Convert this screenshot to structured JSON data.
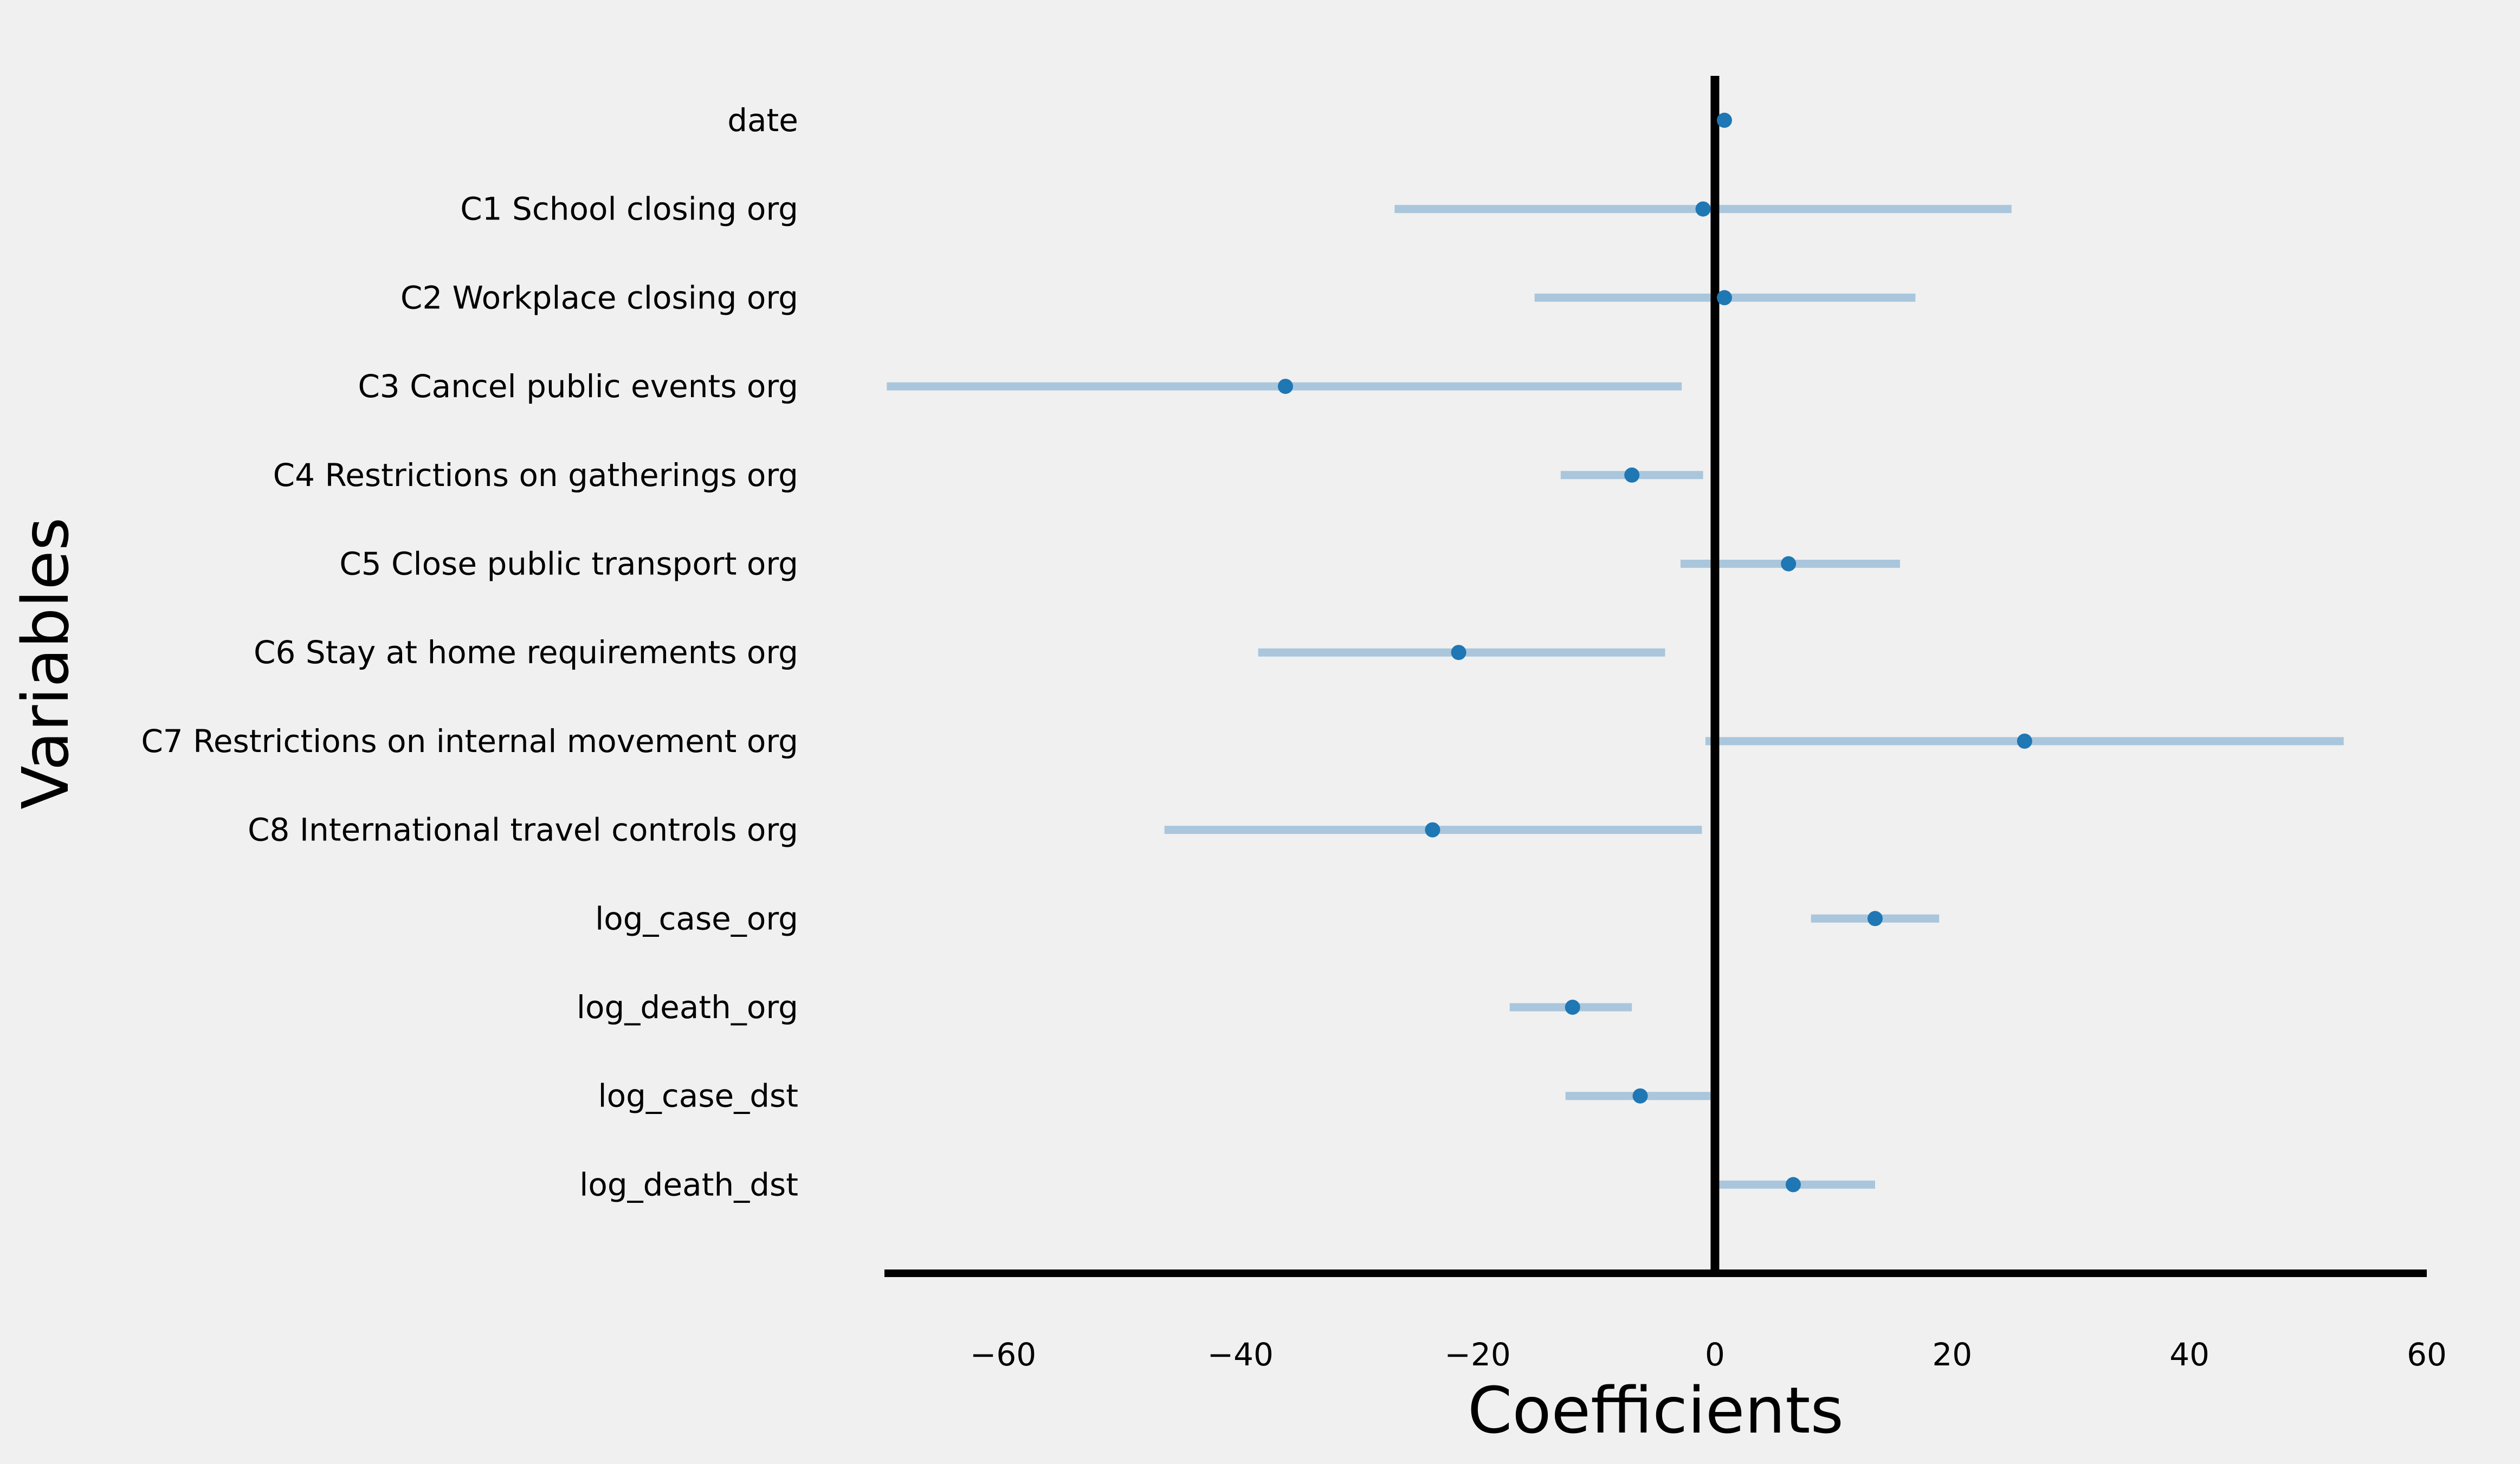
{
  "chart_data": {
    "type": "scatter",
    "subtype": "coefficient-plot",
    "xlabel": "Coefficients",
    "ylabel": "Variables",
    "xlim": [
      -70,
      60
    ],
    "xticks": [
      -60,
      -40,
      -20,
      0,
      20,
      40,
      60
    ],
    "xtick_labels": [
      "−60",
      "−40",
      "−20",
      "0",
      "20",
      "40",
      "60"
    ],
    "zero_line": 0,
    "grid": false,
    "legend": "none",
    "point_color": "#1f77b4",
    "ci_color": "#a9c6dc",
    "variables": [
      {
        "label": "date",
        "coef": 0.8,
        "ci": [
          0.2,
          1.3
        ]
      },
      {
        "label": "C1 School closing org",
        "coef": -1.0,
        "ci": [
          -27.0,
          25.0
        ]
      },
      {
        "label": "C2 Workplace closing org",
        "coef": 0.8,
        "ci": [
          -15.2,
          16.9
        ]
      },
      {
        "label": "C3 Cancel public events org",
        "coef": -36.2,
        "ci": [
          -69.8,
          -2.8
        ]
      },
      {
        "label": "C4 Restrictions on gatherings org",
        "coef": -7.0,
        "ci": [
          -13.0,
          -1.0
        ]
      },
      {
        "label": "C5 Close public transport org",
        "coef": 6.2,
        "ci": [
          -2.9,
          15.6
        ]
      },
      {
        "label": "C6 Stay at home requirements org ",
        "coef": -21.6,
        "ci": [
          -38.5,
          -4.2
        ]
      },
      {
        "label": "C7 Restrictions on internal movement org",
        "coef": 26.1,
        "ci": [
          -0.8,
          53.0
        ]
      },
      {
        "label": "C8 International travel controls org",
        "coef": -23.8,
        "ci": [
          -46.4,
          -1.1
        ]
      },
      {
        "label": "log_case_org",
        "coef": 13.5,
        "ci": [
          8.1,
          18.9
        ]
      },
      {
        "label": "log_death_org",
        "coef": -12.0,
        "ci": [
          -17.3,
          -7.0
        ]
      },
      {
        "label": "log_case_dst",
        "coef": -6.3,
        "ci": [
          -12.6,
          0.1
        ]
      },
      {
        "label": "log_death_dst",
        "coef": 6.6,
        "ci": [
          0.0,
          13.5
        ]
      }
    ]
  }
}
